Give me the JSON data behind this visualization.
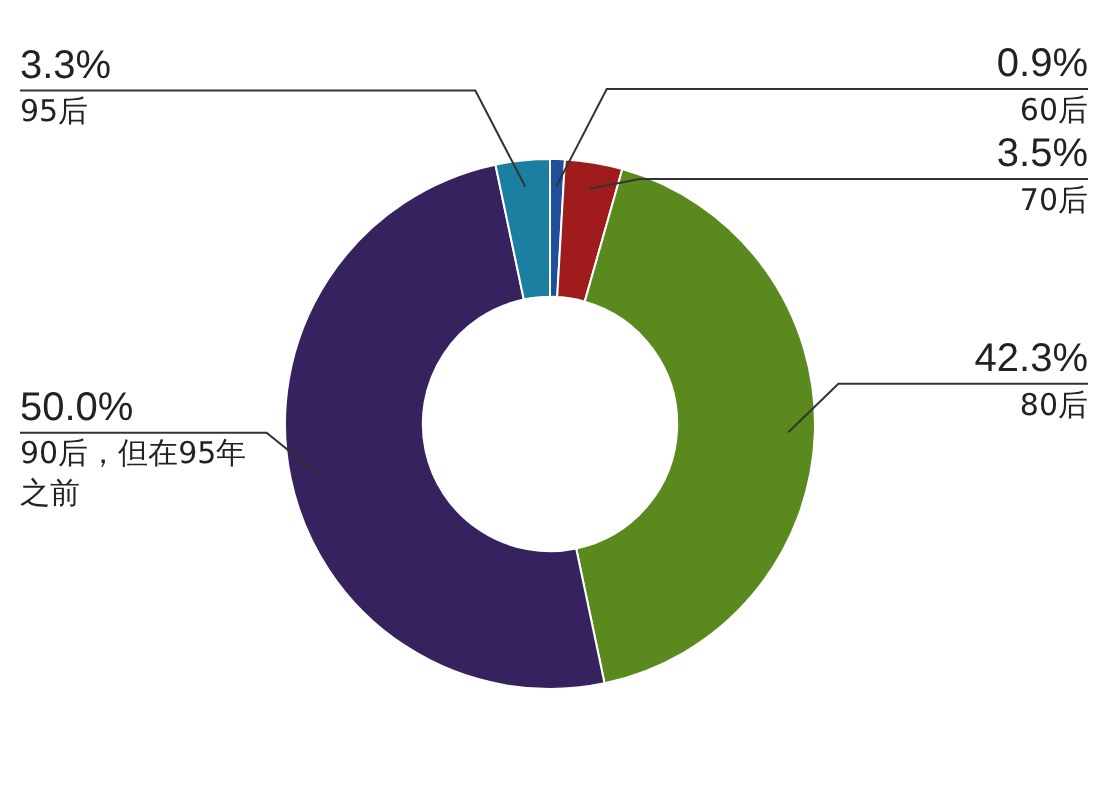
{
  "chart_data": {
    "type": "donut",
    "categories": [
      "60后",
      "70后",
      "80后",
      "90后，但在95年之前",
      "95后"
    ],
    "values": [
      0.9,
      3.5,
      42.3,
      50.0,
      3.3
    ],
    "colors": [
      "#1f4e9a",
      "#a01c1c",
      "#5a8a1e",
      "#36225e",
      "#1a7fa0"
    ],
    "value_labels": [
      "0.9%",
      "3.5%",
      "42.3%",
      "50.0%",
      "3.3%"
    ],
    "legend": false
  }
}
